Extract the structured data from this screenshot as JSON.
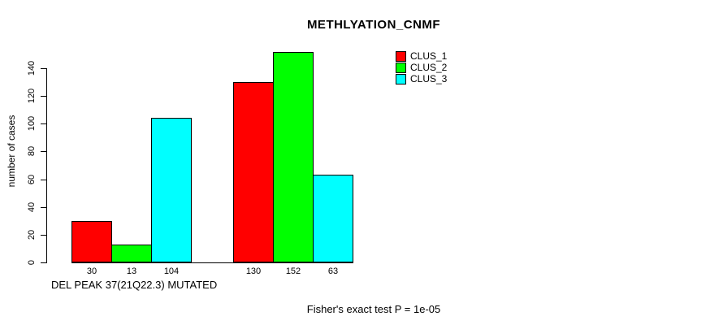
{
  "chart_data": {
    "type": "bar",
    "title": "METHLYATION_CNMF",
    "ylabel": "number of cases",
    "xlabel": "DEL PEAK 37(21Q22.3) MUTATED",
    "footnote": "Fisher's exact test P = 1e-05",
    "grid": false,
    "legend_position": "top-right",
    "yticks": [
      0,
      20,
      40,
      60,
      80,
      100,
      120,
      140
    ],
    "ylim": [
      0,
      160
    ],
    "legend": [
      {
        "label": "CLUS_1",
        "color": "#ff0000"
      },
      {
        "label": "CLUS_2",
        "color": "#00ff00"
      },
      {
        "label": "CLUS_3",
        "color": "#00ffff"
      }
    ],
    "groups": [
      {
        "values": [
          30,
          13,
          104
        ]
      },
      {
        "values": [
          130,
          152,
          63
        ]
      }
    ],
    "bar_value_labels": [
      [
        30,
        13,
        104
      ],
      [
        130,
        152,
        63
      ]
    ],
    "axis_color": "#000000",
    "background_color": "#ffffff"
  }
}
